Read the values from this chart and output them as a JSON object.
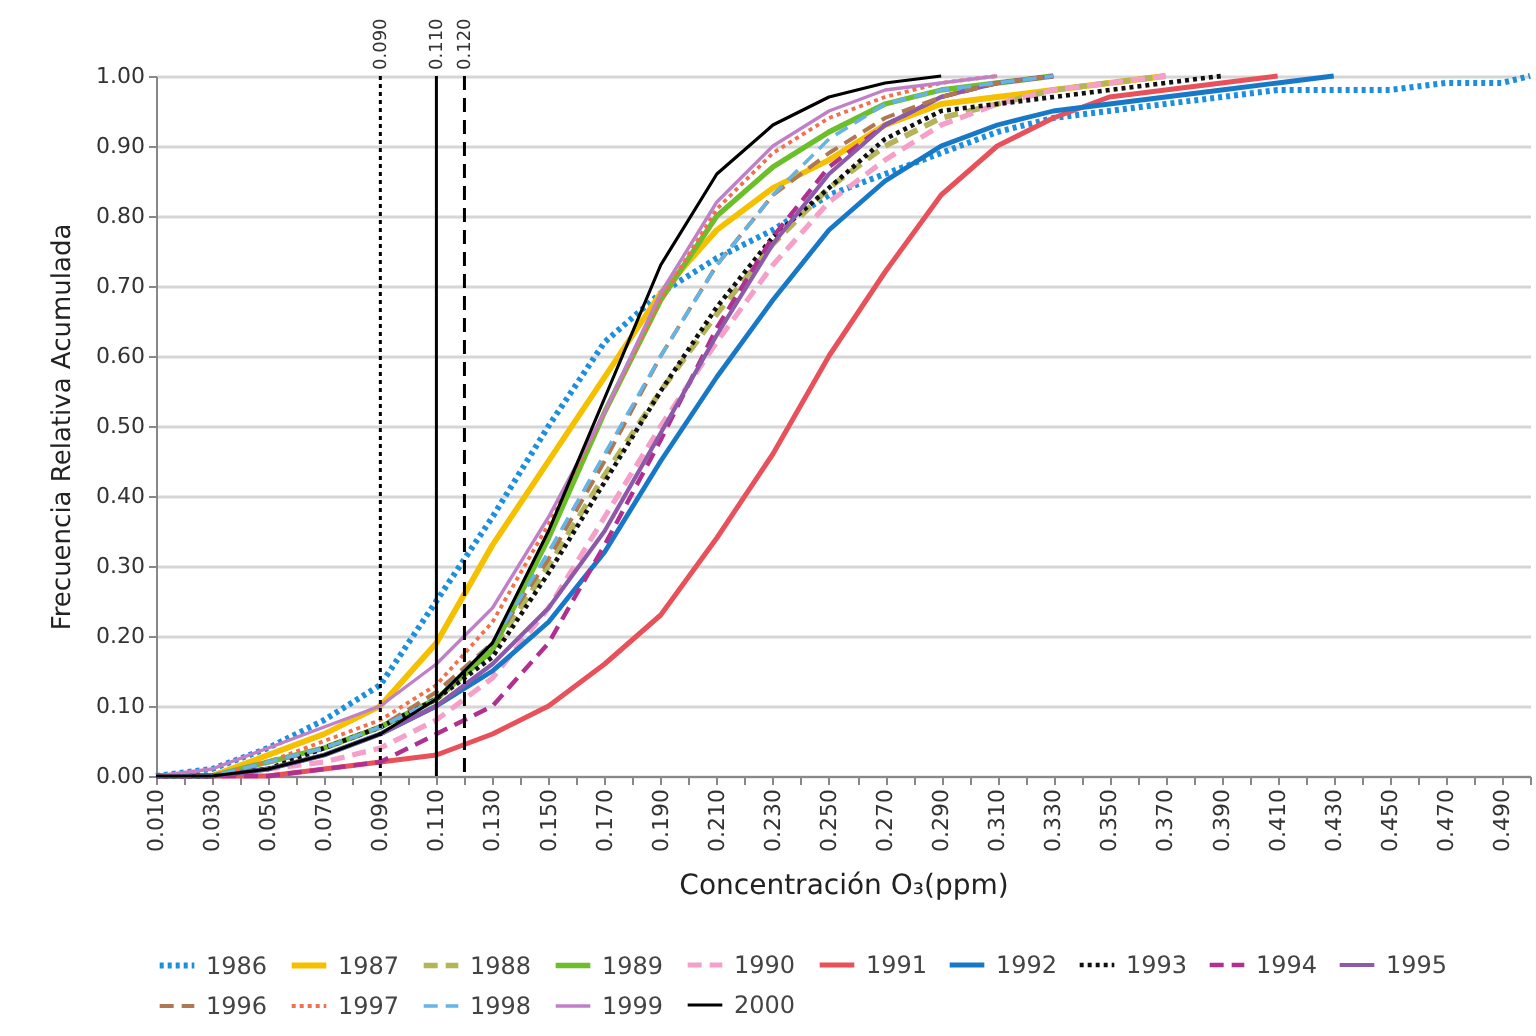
{
  "chart_data": {
    "type": "line",
    "xlabel": "Concentración O₃(ppm)",
    "ylabel": "Frecuencia Relativa Acumulada",
    "x": [
      0.01,
      0.03,
      0.05,
      0.07,
      0.09,
      0.11,
      0.13,
      0.15,
      0.17,
      0.19,
      0.21,
      0.23,
      0.25,
      0.27,
      0.29,
      0.31,
      0.33,
      0.35,
      0.37,
      0.39,
      0.41,
      0.43,
      0.45,
      0.47,
      0.49,
      0.5
    ],
    "series": [
      {
        "name": "1986",
        "color": "#1e8fdc",
        "line_style": "dotted",
        "values": [
          0,
          0.01,
          0.04,
          0.08,
          0.13,
          0.25,
          0.37,
          0.5,
          0.62,
          0.69,
          0.74,
          0.78,
          0.83,
          0.86,
          0.89,
          0.92,
          0.94,
          0.95,
          0.96,
          0.97,
          0.98,
          0.98,
          0.98,
          0.99,
          0.99,
          1
        ]
      },
      {
        "name": "1987",
        "color": "#f5c000",
        "line_style": "solid",
        "values": [
          0,
          0,
          0.03,
          0.06,
          0.1,
          0.19,
          0.33,
          0.45,
          0.57,
          0.69,
          0.78,
          0.84,
          0.88,
          0.93,
          0.96,
          0.97,
          0.98,
          0.99,
          1,
          null,
          null,
          null,
          null,
          null,
          null,
          null
        ]
      },
      {
        "name": "1988",
        "color": "#b4b45a",
        "line_style": "dashed",
        "values": [
          0,
          0,
          0.02,
          0.04,
          0.07,
          0.11,
          0.18,
          0.3,
          0.43,
          0.55,
          0.66,
          0.76,
          0.84,
          0.9,
          0.94,
          0.96,
          0.98,
          0.99,
          1,
          null,
          null,
          null,
          null,
          null,
          null,
          null
        ]
      },
      {
        "name": "1989",
        "color": "#6cbf2a",
        "line_style": "solid",
        "values": [
          0,
          0,
          0.02,
          0.04,
          0.07,
          0.11,
          0.18,
          0.34,
          0.52,
          0.68,
          0.8,
          0.87,
          0.92,
          0.96,
          0.98,
          0.99,
          1,
          null,
          null,
          null,
          null,
          null,
          null,
          null,
          null,
          null
        ]
      },
      {
        "name": "1990",
        "color": "#f4a0c8",
        "line_style": "dashed",
        "values": [
          0,
          0,
          0.01,
          0.02,
          0.04,
          0.08,
          0.14,
          0.24,
          0.37,
          0.5,
          0.62,
          0.73,
          0.82,
          0.88,
          0.93,
          0.96,
          0.98,
          0.99,
          1,
          null,
          null,
          null,
          null,
          null,
          null,
          null
        ]
      },
      {
        "name": "1991",
        "color": "#e8505a",
        "line_style": "solid",
        "values": [
          0,
          0,
          0,
          0.01,
          0.02,
          0.03,
          0.06,
          0.1,
          0.16,
          0.23,
          0.34,
          0.46,
          0.6,
          0.72,
          0.83,
          0.9,
          0.94,
          0.97,
          0.98,
          0.99,
          1,
          null,
          null,
          null,
          null,
          null
        ]
      },
      {
        "name": "1992",
        "color": "#1878c8",
        "line_style": "solid",
        "values": [
          0,
          0,
          0.01,
          0.03,
          0.06,
          0.1,
          0.15,
          0.22,
          0.32,
          0.45,
          0.57,
          0.68,
          0.78,
          0.85,
          0.9,
          0.93,
          0.95,
          0.96,
          0.97,
          0.98,
          0.99,
          1,
          null,
          null,
          null,
          null
        ]
      },
      {
        "name": "1993",
        "color": "#111111",
        "line_style": "dotted",
        "values": [
          0,
          0,
          0.01,
          0.04,
          0.07,
          0.11,
          0.17,
          0.29,
          0.42,
          0.55,
          0.67,
          0.77,
          0.84,
          0.91,
          0.95,
          0.96,
          0.97,
          0.98,
          0.99,
          1,
          null,
          null,
          null,
          null,
          null,
          null
        ]
      },
      {
        "name": "1994",
        "color": "#b03090",
        "line_style": "dashed",
        "values": [
          0,
          0,
          0,
          0.01,
          0.02,
          0.06,
          0.1,
          0.19,
          0.33,
          0.48,
          0.64,
          0.77,
          0.87,
          0.93,
          0.97,
          0.99,
          1,
          null,
          null,
          null,
          null,
          null,
          null,
          null,
          null,
          null
        ]
      },
      {
        "name": "1995",
        "color": "#8c5aa8",
        "line_style": "solid",
        "values": [
          0,
          0,
          0.01,
          0.03,
          0.06,
          0.1,
          0.16,
          0.24,
          0.35,
          0.49,
          0.63,
          0.76,
          0.86,
          0.93,
          0.97,
          0.99,
          1,
          null,
          null,
          null,
          null,
          null,
          null,
          null,
          null,
          null
        ]
      },
      {
        "name": "1996",
        "color": "#b07850",
        "line_style": "dashed",
        "values": [
          0,
          0,
          0.02,
          0.04,
          0.07,
          0.12,
          0.19,
          0.31,
          0.45,
          0.6,
          0.73,
          0.83,
          0.89,
          0.94,
          0.97,
          0.99,
          1,
          null,
          null,
          null,
          null,
          null,
          null,
          null,
          null,
          null
        ]
      },
      {
        "name": "1997",
        "color": "#f07050",
        "line_style": "dotted",
        "values": [
          0,
          0,
          0.02,
          0.05,
          0.08,
          0.13,
          0.22,
          0.36,
          0.52,
          0.68,
          0.81,
          0.89,
          0.94,
          0.97,
          0.99,
          1,
          null,
          null,
          null,
          null,
          null,
          null,
          null,
          null,
          null,
          null
        ]
      },
      {
        "name": "1998",
        "color": "#64b4e6",
        "line_style": "dashed",
        "values": [
          0,
          0,
          0.02,
          0.04,
          0.07,
          0.11,
          0.19,
          0.32,
          0.46,
          0.6,
          0.73,
          0.83,
          0.91,
          0.96,
          0.98,
          0.99,
          1,
          null,
          null,
          null,
          null,
          null,
          null,
          null,
          null,
          null
        ]
      },
      {
        "name": "1999",
        "color": "#c080c8",
        "line_style": "solid",
        "values": [
          0,
          0.01,
          0.04,
          0.07,
          0.1,
          0.16,
          0.24,
          0.37,
          0.52,
          0.69,
          0.82,
          0.9,
          0.95,
          0.98,
          0.99,
          1,
          null,
          null,
          null,
          null,
          null,
          null,
          null,
          null,
          null,
          null
        ]
      },
      {
        "name": "2000",
        "color": "#000000",
        "line_style": "solid",
        "values": [
          0,
          0,
          0.01,
          0.03,
          0.06,
          0.11,
          0.19,
          0.35,
          0.54,
          0.73,
          0.86,
          0.93,
          0.97,
          0.99,
          1,
          null,
          null,
          null,
          null,
          null,
          null,
          null,
          null,
          null,
          null,
          null
        ]
      }
    ],
    "xlim": [
      0.01,
      0.5
    ],
    "xticks": [
      {
        "value": 0.01,
        "label": "0.010"
      },
      {
        "value": 0.02,
        "label": null
      },
      {
        "value": 0.03,
        "label": "0.030"
      },
      {
        "value": 0.04,
        "label": null
      },
      {
        "value": 0.05,
        "label": "0.050"
      },
      {
        "value": 0.06,
        "label": null
      },
      {
        "value": 0.07,
        "label": "0.070"
      },
      {
        "value": 0.08,
        "label": null
      },
      {
        "value": 0.09,
        "label": "0.090"
      },
      {
        "value": 0.1,
        "label": null
      },
      {
        "value": 0.11,
        "label": "0.110"
      },
      {
        "value": 0.12,
        "label": null
      },
      {
        "value": 0.13,
        "label": "0.130"
      },
      {
        "value": 0.14,
        "label": null
      },
      {
        "value": 0.15,
        "label": "0.150"
      },
      {
        "value": 0.16,
        "label": null
      },
      {
        "value": 0.17,
        "label": "0.170"
      },
      {
        "value": 0.18,
        "label": null
      },
      {
        "value": 0.19,
        "label": "0.190"
      },
      {
        "value": 0.2,
        "label": null
      },
      {
        "value": 0.21,
        "label": "0.210"
      },
      {
        "value": 0.22,
        "label": null
      },
      {
        "value": 0.23,
        "label": "0.230"
      },
      {
        "value": 0.24,
        "label": null
      },
      {
        "value": 0.25,
        "label": "0.250"
      },
      {
        "value": 0.26,
        "label": null
      },
      {
        "value": 0.27,
        "label": "0.270"
      },
      {
        "value": 0.28,
        "label": null
      },
      {
        "value": 0.29,
        "label": "0.290"
      },
      {
        "value": 0.3,
        "label": null
      },
      {
        "value": 0.31,
        "label": "0.310"
      },
      {
        "value": 0.32,
        "label": null
      },
      {
        "value": 0.33,
        "label": "0.330"
      },
      {
        "value": 0.34,
        "label": null
      },
      {
        "value": 0.35,
        "label": "0.350"
      },
      {
        "value": 0.36,
        "label": null
      },
      {
        "value": 0.37,
        "label": "0.370"
      },
      {
        "value": 0.38,
        "label": null
      },
      {
        "value": 0.39,
        "label": "0.390"
      },
      {
        "value": 0.4,
        "label": null
      },
      {
        "value": 0.41,
        "label": "0.410"
      },
      {
        "value": 0.42,
        "label": null
      },
      {
        "value": 0.43,
        "label": "0.430"
      },
      {
        "value": 0.44,
        "label": null
      },
      {
        "value": 0.45,
        "label": "0.450"
      },
      {
        "value": 0.46,
        "label": null
      },
      {
        "value": 0.47,
        "label": "0.470"
      },
      {
        "value": 0.48,
        "label": null
      },
      {
        "value": 0.49,
        "label": "0.490"
      },
      {
        "value": 0.5,
        "label": null
      }
    ],
    "ylim": [
      0,
      1
    ],
    "yticks": [
      {
        "value": 0,
        "label": "0.00"
      },
      {
        "value": 0.1,
        "label": "0.10"
      },
      {
        "value": 0.2,
        "label": "0.20"
      },
      {
        "value": 0.3,
        "label": "0.30"
      },
      {
        "value": 0.4,
        "label": "0.40"
      },
      {
        "value": 0.5,
        "label": "0.50"
      },
      {
        "value": 0.6,
        "label": "0.60"
      },
      {
        "value": 0.7,
        "label": "0.70"
      },
      {
        "value": 0.8,
        "label": "0.80"
      },
      {
        "value": 0.9,
        "label": "0.90"
      },
      {
        "value": 1,
        "label": "1.00"
      }
    ],
    "grid": "y",
    "legend": "bottom",
    "ref_lines": [
      {
        "axis": "x",
        "value": 0.09,
        "label": "0.090",
        "color": "#000000",
        "line_style": "dotted"
      },
      {
        "axis": "x",
        "value": 0.11,
        "label": "0.110",
        "color": "#000000",
        "line_style": "solid"
      },
      {
        "axis": "x",
        "value": 0.12,
        "label": "0.120",
        "color": "#000000",
        "line_style": "dashed"
      }
    ]
  }
}
